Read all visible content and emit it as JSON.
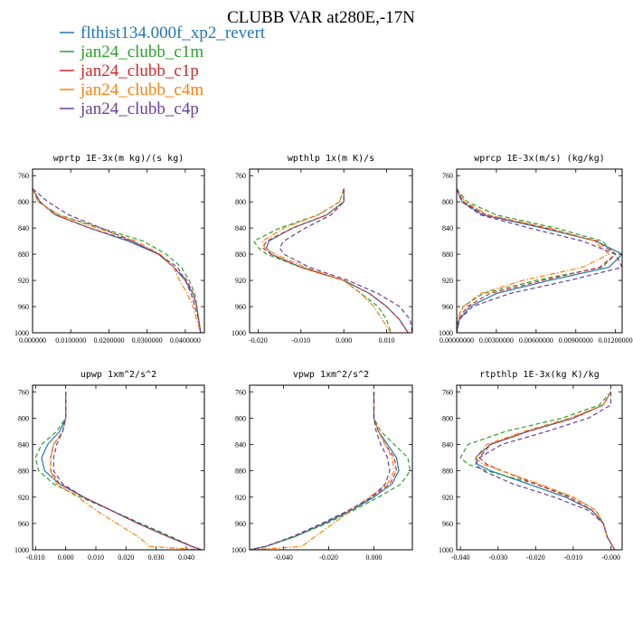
{
  "figure": {
    "title": "CLUBB VAR at280E,-17N"
  },
  "legend": [
    {
      "name": "flthist134.000f_xp2_revert",
      "color": "#1f77b4",
      "dash": "solid"
    },
    {
      "name": "jan24_clubb_c1m",
      "color": "#2ca02c",
      "dash": "dash"
    },
    {
      "name": "jan24_clubb_c1p",
      "color": "#d62728",
      "dash": "dash"
    },
    {
      "name": "jan24_clubb_c4m",
      "color": "#ff7f0e",
      "dash": "dashdot"
    },
    {
      "name": "jan24_clubb_c4p",
      "color": "#6a3d9a",
      "dash": "dash"
    }
  ],
  "chart_data": [
    {
      "type": "line",
      "title": "wprtp  1E-3x(m kg)/(s kg)",
      "xlim": [
        0,
        0.045
      ],
      "ylim": [
        1000,
        750
      ],
      "xticks": [
        0,
        0.01,
        0.02,
        0.03,
        0.04
      ],
      "xtick_labels": [
        "0.000000",
        "0.0100000",
        "0.0200000",
        "0.0300000",
        "0.0400000"
      ],
      "yticks": [
        760,
        800,
        840,
        880,
        920,
        960,
        1000
      ],
      "y": [
        780,
        800,
        820,
        840,
        860,
        880,
        900,
        920,
        940,
        960,
        980,
        1000
      ],
      "series": [
        {
          "x": [
            0.0,
            0.002,
            0.006,
            0.015,
            0.025,
            0.033,
            0.037,
            0.04,
            0.042,
            0.043,
            0.0435,
            0.044
          ]
        },
        {
          "x": [
            0.0,
            0.0015,
            0.007,
            0.018,
            0.029,
            0.035,
            0.039,
            0.041,
            0.0425,
            0.043,
            0.0435,
            0.044
          ]
        },
        {
          "x": [
            0.0,
            0.0018,
            0.006,
            0.015,
            0.026,
            0.033,
            0.037,
            0.0405,
            0.042,
            0.043,
            0.0435,
            0.044
          ]
        },
        {
          "x": [
            0.0,
            0.0015,
            0.0068,
            0.017,
            0.027,
            0.0335,
            0.037,
            0.0385,
            0.0405,
            0.042,
            0.043,
            0.044
          ]
        },
        {
          "x": [
            0.0,
            0.004,
            0.0095,
            0.018,
            0.026,
            0.033,
            0.038,
            0.04,
            0.0415,
            0.0425,
            0.0435,
            0.044
          ]
        }
      ]
    },
    {
      "type": "line",
      "title": "wpthlp  1x(m K)/s",
      "xlim": [
        -0.022,
        0.016
      ],
      "ylim": [
        1000,
        750
      ],
      "xticks": [
        -0.02,
        -0.01,
        0,
        0.01
      ],
      "xtick_labels": [
        "-0.020",
        "-0.010",
        "0.000",
        "0.010"
      ],
      "yticks": [
        760,
        800,
        840,
        880,
        920,
        960,
        1000
      ],
      "y": [
        780,
        800,
        820,
        840,
        860,
        870,
        880,
        900,
        920,
        940,
        960,
        980,
        1000
      ],
      "series": [
        {
          "x": [
            0.0,
            0.0,
            -0.004,
            -0.012,
            -0.0175,
            -0.018,
            -0.017,
            -0.01,
            0.0,
            0.006,
            0.01,
            0.013,
            0.015
          ]
        },
        {
          "x": [
            0.0,
            -0.001,
            -0.006,
            -0.015,
            -0.021,
            -0.02,
            -0.018,
            -0.01,
            0.0,
            0.004,
            0.008,
            0.01,
            0.011
          ]
        },
        {
          "x": [
            0.0,
            0.0,
            -0.004,
            -0.012,
            -0.018,
            -0.019,
            -0.017,
            -0.01,
            0.0,
            0.006,
            0.01,
            0.013,
            0.015
          ]
        },
        {
          "x": [
            0.0,
            -0.001,
            -0.006,
            -0.014,
            -0.019,
            -0.0185,
            -0.016,
            -0.009,
            0.0,
            0.004,
            0.007,
            0.009,
            0.011
          ]
        },
        {
          "x": [
            0.0,
            0.0,
            -0.003,
            -0.009,
            -0.014,
            -0.015,
            -0.014,
            -0.008,
            0.001,
            0.008,
            0.013,
            0.0155,
            0.016
          ]
        }
      ]
    },
    {
      "type": "line",
      "title": "wprcp  1E-3x(m/s) (kg/kg)",
      "xlim": [
        0,
        0.0125
      ],
      "ylim": [
        1000,
        750
      ],
      "xticks": [
        0,
        0.003,
        0.006,
        0.009,
        0.012
      ],
      "xtick_labels": [
        "0.00000000",
        "0.00300000",
        "0.00600000",
        "0.00900000",
        "0.01200000"
      ],
      "yticks": [
        760,
        800,
        840,
        880,
        920,
        960,
        1000
      ],
      "y": [
        780,
        800,
        820,
        840,
        860,
        880,
        900,
        920,
        940,
        960,
        980,
        1000
      ],
      "series": [
        {
          "x": [
            0.0,
            0.0004,
            0.002,
            0.0065,
            0.0105,
            0.0125,
            0.0115,
            0.007,
            0.003,
            0.001,
            0.0002,
            0.0
          ]
        },
        {
          "x": [
            0.0,
            0.0008,
            0.003,
            0.0075,
            0.011,
            0.012,
            0.011,
            0.006,
            0.002,
            0.0005,
            0.0,
            0.0
          ]
        },
        {
          "x": [
            0.0,
            0.0005,
            0.0022,
            0.0068,
            0.0106,
            0.012,
            0.0108,
            0.0065,
            0.0025,
            0.0008,
            0.0001,
            0.0
          ]
        },
        {
          "x": [
            0.0,
            0.0006,
            0.0024,
            0.007,
            0.0104,
            0.0115,
            0.0095,
            0.005,
            0.0018,
            0.0005,
            0.0,
            0.0
          ]
        },
        {
          "x": [
            0.0,
            0.0004,
            0.0018,
            0.0055,
            0.0095,
            0.012,
            0.0125,
            0.0085,
            0.004,
            0.0012,
            0.0002,
            0.0
          ]
        }
      ]
    },
    {
      "type": "line",
      "title": "upwp  1xm^2/s^2",
      "xlim": [
        -0.011,
        0.046
      ],
      "ylim": [
        1000,
        750
      ],
      "xticks": [
        -0.01,
        0,
        0.01,
        0.02,
        0.03,
        0.04
      ],
      "xtick_labels": [
        "-0.010",
        "0.000",
        "0.010",
        "0.020",
        "0.030",
        "0.040"
      ],
      "yticks": [
        760,
        800,
        840,
        880,
        920,
        960,
        1000
      ],
      "y": [
        760,
        800,
        820,
        840,
        860,
        880,
        900,
        920,
        940,
        960,
        980,
        995,
        1000
      ],
      "series": [
        {
          "x": [
            0.0,
            0.0,
            -0.002,
            -0.006,
            -0.008,
            -0.007,
            -0.002,
            0.006,
            0.015,
            0.024,
            0.034,
            0.042,
            0.045
          ]
        },
        {
          "x": [
            0.0,
            0.0,
            -0.003,
            -0.008,
            -0.01,
            -0.009,
            -0.004,
            0.005,
            0.015,
            0.025,
            0.035,
            0.042,
            0.045
          ]
        },
        {
          "x": [
            0.0,
            0.0,
            -0.001,
            -0.004,
            -0.005,
            -0.005,
            -0.002,
            0.006,
            0.015,
            0.024,
            0.034,
            0.042,
            0.045
          ]
        },
        {
          "x": [
            0.0,
            0.0,
            -0.001,
            -0.004,
            -0.005,
            -0.005,
            -0.003,
            0.004,
            0.01,
            0.017,
            0.024,
            0.028,
            0.045
          ]
        },
        {
          "x": [
            0.0,
            0.0,
            -0.001,
            -0.003,
            -0.004,
            -0.004,
            -0.001,
            0.006,
            0.015,
            0.024,
            0.034,
            0.042,
            0.045
          ]
        }
      ]
    },
    {
      "type": "line",
      "title": "vpwp  1xm^2/s^2",
      "xlim": [
        -0.055,
        0.017
      ],
      "ylim": [
        1000,
        750
      ],
      "xticks": [
        -0.04,
        -0.02,
        0
      ],
      "xtick_labels": [
        "-0.040",
        "-0.020",
        "0.000"
      ],
      "yticks": [
        760,
        800,
        840,
        880,
        920,
        960,
        1000
      ],
      "y": [
        760,
        800,
        820,
        840,
        860,
        880,
        900,
        920,
        940,
        960,
        980,
        995,
        1000
      ],
      "series": [
        {
          "x": [
            0.0,
            0.0,
            0.002,
            0.006,
            0.01,
            0.011,
            0.008,
            0.0,
            -0.01,
            -0.022,
            -0.035,
            -0.048,
            -0.055
          ]
        },
        {
          "x": [
            0.0,
            0.0,
            0.003,
            0.009,
            0.015,
            0.016,
            0.012,
            0.002,
            -0.009,
            -0.021,
            -0.035,
            -0.048,
            -0.055
          ]
        },
        {
          "x": [
            0.0,
            0.0,
            0.002,
            0.005,
            0.009,
            0.01,
            0.007,
            -0.001,
            -0.011,
            -0.023,
            -0.036,
            -0.048,
            -0.055
          ]
        },
        {
          "x": [
            0.0,
            0.0,
            0.002,
            0.005,
            0.008,
            0.009,
            0.006,
            -0.002,
            -0.01,
            -0.018,
            -0.026,
            -0.032,
            -0.055
          ]
        },
        {
          "x": [
            0.0,
            0.0,
            0.001,
            0.003,
            0.006,
            0.007,
            0.005,
            -0.001,
            -0.011,
            -0.023,
            -0.036,
            -0.048,
            -0.055
          ]
        }
      ]
    },
    {
      "type": "line",
      "title": "rtpthlp  1E-3x(kg K)/kg",
      "xlim": [
        -0.041,
        0.003
      ],
      "ylim": [
        1000,
        750
      ],
      "xticks": [
        -0.04,
        -0.03,
        -0.02,
        -0.01,
        0
      ],
      "xtick_labels": [
        "-0.040",
        "-0.030",
        "-0.020",
        "-0.010",
        "-0.000"
      ],
      "yticks": [
        760,
        800,
        840,
        880,
        920,
        960,
        1000
      ],
      "y": [
        760,
        780,
        800,
        820,
        840,
        860,
        870,
        880,
        900,
        920,
        940,
        960,
        980,
        1000
      ],
      "series": [
        {
          "x": [
            0.0,
            -0.002,
            -0.01,
            -0.022,
            -0.032,
            -0.036,
            -0.0355,
            -0.032,
            -0.022,
            -0.012,
            -0.005,
            -0.002,
            -0.001,
            0.001
          ]
        },
        {
          "x": [
            0.0,
            -0.003,
            -0.013,
            -0.028,
            -0.038,
            -0.04,
            -0.038,
            -0.033,
            -0.02,
            -0.01,
            -0.004,
            -0.002,
            -0.001,
            0.001
          ]
        },
        {
          "x": [
            0.0,
            -0.002,
            -0.01,
            -0.022,
            -0.032,
            -0.035,
            -0.033,
            -0.029,
            -0.02,
            -0.011,
            -0.005,
            -0.002,
            -0.001,
            0.001
          ]
        },
        {
          "x": [
            0.0,
            -0.002,
            -0.011,
            -0.023,
            -0.033,
            -0.036,
            -0.034,
            -0.029,
            -0.019,
            -0.01,
            -0.004,
            -0.002,
            -0.001,
            0.001
          ]
        },
        {
          "x": [
            0.0,
            0.0,
            -0.006,
            -0.017,
            -0.029,
            -0.035,
            -0.036,
            -0.034,
            -0.026,
            -0.015,
            -0.006,
            -0.002,
            -0.001,
            0.001
          ]
        }
      ]
    }
  ]
}
